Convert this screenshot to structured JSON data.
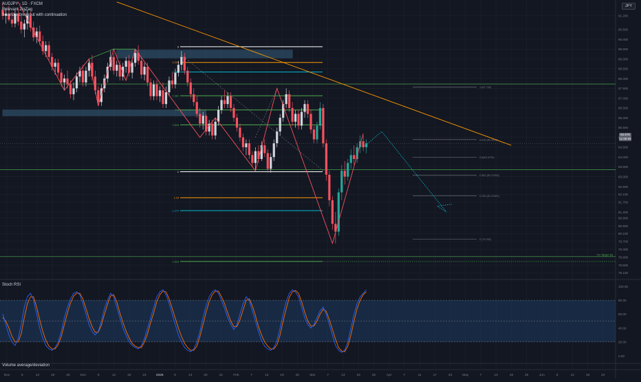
{
  "header": {
    "line1": "AUDJPY · 1D · FXCM",
    "line2": "Relevant ZigZag",
    "line3": "3 candle breakout with continuation"
  },
  "currency": "JPY",
  "last_price": {
    "price": "84.676",
    "countdown": "11:05:06"
  },
  "lower_panes": {
    "rsi_title": "Stoch RSI",
    "volume_title": "Volume average/deviation"
  },
  "colors": {
    "bg": "#131722",
    "grid": "#1e222d",
    "up": "#d1d4dc",
    "up_green": "#26a69a",
    "down": "#f7525f",
    "zigzag": "#f7525f",
    "trend": "#ff9800",
    "fib_white": "#ffffff",
    "fib_orange": "#ff9800",
    "fib_cyan": "#00bcd4",
    "fib_green": "#4caf50",
    "k_line": "#2962ff",
    "d_line": "#ff6d00",
    "band_fill": "#1e3a5f",
    "projection": "#00bcd4"
  },
  "chart_data": {
    "type": "candlestick",
    "symbol": "AUDJPY",
    "timeframe": "1D",
    "y_axis_ticks": [
      "91.200",
      "90.500",
      "90.000",
      "89.500",
      "89.000",
      "88.500",
      "88.000",
      "87.500",
      "87.000",
      "86.500",
      "86.000",
      "85.500",
      "85.000",
      "84.500",
      "84.000",
      "83.500",
      "83.000",
      "82.500",
      "82.100",
      "81.700",
      "81.200",
      "80.900",
      "80.500",
      "80.100",
      "79.700",
      "79.300",
      "78.900",
      "78.500",
      "78.100"
    ],
    "ylim": [
      77.8,
      92.0
    ],
    "x_axis_labels": [
      "Nov",
      "6",
      "13",
      "19",
      "25",
      "Dec",
      "6",
      "12",
      "18",
      "24",
      "2025",
      "8",
      "14",
      "20",
      "24",
      "Feb",
      "7",
      "13",
      "19",
      "25",
      "Mar",
      "7",
      "13",
      "19",
      "25",
      "Apr",
      "7",
      "11",
      "17",
      "23",
      "May",
      "7",
      "13",
      "19",
      "25",
      "Jun",
      "6",
      "12",
      "18",
      "24"
    ],
    "candles": [
      {
        "o": 91.5,
        "h": 91.9,
        "l": 91.0,
        "c": 91.2
      },
      {
        "o": 91.2,
        "h": 91.6,
        "l": 90.8,
        "c": 91.3
      },
      {
        "o": 91.3,
        "h": 91.7,
        "l": 90.9,
        "c": 91.0
      },
      {
        "o": 91.0,
        "h": 91.4,
        "l": 90.6,
        "c": 90.8
      },
      {
        "o": 90.8,
        "h": 91.5,
        "l": 90.6,
        "c": 91.3
      },
      {
        "o": 91.3,
        "h": 91.6,
        "l": 90.7,
        "c": 90.9
      },
      {
        "o": 90.9,
        "h": 91.2,
        "l": 90.3,
        "c": 90.5
      },
      {
        "o": 90.5,
        "h": 91.0,
        "l": 90.1,
        "c": 90.8
      },
      {
        "o": 90.8,
        "h": 91.5,
        "l": 90.5,
        "c": 91.2
      },
      {
        "o": 91.2,
        "h": 91.4,
        "l": 90.4,
        "c": 90.6
      },
      {
        "o": 90.6,
        "h": 90.9,
        "l": 89.9,
        "c": 90.1
      },
      {
        "o": 90.1,
        "h": 90.6,
        "l": 89.8,
        "c": 90.4
      },
      {
        "o": 90.4,
        "h": 90.7,
        "l": 89.7,
        "c": 89.9
      },
      {
        "o": 89.9,
        "h": 90.2,
        "l": 89.2,
        "c": 89.4
      },
      {
        "o": 89.4,
        "h": 89.9,
        "l": 89.1,
        "c": 89.7
      },
      {
        "o": 89.7,
        "h": 89.9,
        "l": 88.9,
        "c": 89.1
      },
      {
        "o": 89.1,
        "h": 89.3,
        "l": 88.4,
        "c": 88.6
      },
      {
        "o": 88.6,
        "h": 89.0,
        "l": 88.2,
        "c": 88.8
      },
      {
        "o": 88.8,
        "h": 89.0,
        "l": 88.1,
        "c": 88.3
      },
      {
        "o": 88.3,
        "h": 88.5,
        "l": 87.6,
        "c": 87.8
      },
      {
        "o": 87.8,
        "h": 88.2,
        "l": 87.4,
        "c": 88.0
      },
      {
        "o": 88.0,
        "h": 88.4,
        "l": 87.5,
        "c": 87.7
      },
      {
        "o": 87.7,
        "h": 87.9,
        "l": 87.0,
        "c": 87.2
      },
      {
        "o": 87.2,
        "h": 87.8,
        "l": 86.9,
        "c": 87.5
      },
      {
        "o": 87.5,
        "h": 88.3,
        "l": 87.3,
        "c": 88.1
      },
      {
        "o": 88.1,
        "h": 88.6,
        "l": 87.8,
        "c": 88.4
      },
      {
        "o": 88.4,
        "h": 88.7,
        "l": 87.6,
        "c": 87.8
      },
      {
        "o": 87.8,
        "h": 88.6,
        "l": 87.6,
        "c": 88.4
      },
      {
        "o": 88.4,
        "h": 89.0,
        "l": 88.1,
        "c": 88.8
      },
      {
        "o": 88.8,
        "h": 89.2,
        "l": 87.9,
        "c": 88.1
      },
      {
        "o": 88.1,
        "h": 88.4,
        "l": 87.2,
        "c": 87.4
      },
      {
        "o": 87.4,
        "h": 87.6,
        "l": 86.6,
        "c": 86.8
      },
      {
        "o": 86.8,
        "h": 87.7,
        "l": 86.6,
        "c": 87.5
      },
      {
        "o": 87.5,
        "h": 88.2,
        "l": 87.3,
        "c": 88.0
      },
      {
        "o": 88.0,
        "h": 88.8,
        "l": 87.8,
        "c": 88.6
      },
      {
        "o": 88.6,
        "h": 89.4,
        "l": 88.4,
        "c": 89.1
      },
      {
        "o": 89.1,
        "h": 89.3,
        "l": 88.2,
        "c": 88.4
      },
      {
        "o": 88.4,
        "h": 88.9,
        "l": 88.1,
        "c": 88.7
      },
      {
        "o": 88.7,
        "h": 88.9,
        "l": 87.9,
        "c": 88.1
      },
      {
        "o": 88.1,
        "h": 88.8,
        "l": 87.9,
        "c": 88.6
      },
      {
        "o": 88.6,
        "h": 89.1,
        "l": 88.3,
        "c": 88.9
      },
      {
        "o": 88.9,
        "h": 89.2,
        "l": 88.1,
        "c": 88.3
      },
      {
        "o": 88.3,
        "h": 89.0,
        "l": 88.0,
        "c": 88.8
      },
      {
        "o": 88.8,
        "h": 89.5,
        "l": 88.6,
        "c": 89.3
      },
      {
        "o": 89.3,
        "h": 89.7,
        "l": 88.7,
        "c": 88.9
      },
      {
        "o": 88.9,
        "h": 89.1,
        "l": 88.0,
        "c": 88.2
      },
      {
        "o": 88.2,
        "h": 88.8,
        "l": 87.9,
        "c": 88.6
      },
      {
        "o": 88.6,
        "h": 88.8,
        "l": 87.6,
        "c": 87.8
      },
      {
        "o": 87.8,
        "h": 88.0,
        "l": 86.9,
        "c": 87.1
      },
      {
        "o": 87.1,
        "h": 87.9,
        "l": 86.9,
        "c": 87.7
      },
      {
        "o": 87.7,
        "h": 87.9,
        "l": 86.9,
        "c": 87.1
      },
      {
        "o": 87.1,
        "h": 87.6,
        "l": 86.8,
        "c": 87.4
      },
      {
        "o": 87.4,
        "h": 87.8,
        "l": 86.5,
        "c": 86.7
      },
      {
        "o": 86.7,
        "h": 87.6,
        "l": 86.5,
        "c": 87.3
      },
      {
        "o": 87.3,
        "h": 88.1,
        "l": 87.1,
        "c": 87.9
      },
      {
        "o": 87.9,
        "h": 88.3,
        "l": 87.5,
        "c": 87.7
      },
      {
        "o": 87.7,
        "h": 88.5,
        "l": 87.5,
        "c": 88.3
      },
      {
        "o": 88.3,
        "h": 88.9,
        "l": 88.1,
        "c": 88.7
      },
      {
        "o": 88.7,
        "h": 89.4,
        "l": 88.4,
        "c": 89.1
      },
      {
        "o": 89.1,
        "h": 89.3,
        "l": 88.2,
        "c": 88.4
      },
      {
        "o": 88.4,
        "h": 88.6,
        "l": 87.6,
        "c": 87.8
      },
      {
        "o": 87.8,
        "h": 88.0,
        "l": 87.0,
        "c": 87.2
      },
      {
        "o": 87.2,
        "h": 87.5,
        "l": 86.6,
        "c": 86.8
      },
      {
        "o": 86.8,
        "h": 87.1,
        "l": 86.0,
        "c": 86.2
      },
      {
        "o": 86.2,
        "h": 86.5,
        "l": 85.5,
        "c": 85.7
      },
      {
        "o": 85.7,
        "h": 86.3,
        "l": 85.4,
        "c": 86.1
      },
      {
        "o": 86.1,
        "h": 86.2,
        "l": 85.1,
        "c": 85.3
      },
      {
        "o": 85.3,
        "h": 85.9,
        "l": 85.1,
        "c": 85.7
      },
      {
        "o": 85.7,
        "h": 85.9,
        "l": 84.9,
        "c": 85.1
      },
      {
        "o": 85.1,
        "h": 86.0,
        "l": 84.9,
        "c": 85.8
      },
      {
        "o": 85.8,
        "h": 86.6,
        "l": 85.6,
        "c": 86.4
      },
      {
        "o": 86.4,
        "h": 87.1,
        "l": 86.2,
        "c": 86.9
      },
      {
        "o": 86.9,
        "h": 87.4,
        "l": 86.5,
        "c": 86.7
      },
      {
        "o": 86.7,
        "h": 87.3,
        "l": 86.5,
        "c": 87.1
      },
      {
        "o": 87.1,
        "h": 87.3,
        "l": 86.3,
        "c": 86.5
      },
      {
        "o": 86.5,
        "h": 86.7,
        "l": 85.8,
        "c": 86.0
      },
      {
        "o": 86.0,
        "h": 86.2,
        "l": 85.3,
        "c": 85.5
      },
      {
        "o": 85.5,
        "h": 85.7,
        "l": 84.8,
        "c": 85.0
      },
      {
        "o": 85.0,
        "h": 85.2,
        "l": 84.3,
        "c": 84.5
      },
      {
        "o": 84.5,
        "h": 84.9,
        "l": 84.1,
        "c": 84.7
      },
      {
        "o": 84.7,
        "h": 84.9,
        "l": 83.9,
        "c": 84.1
      },
      {
        "o": 84.1,
        "h": 84.3,
        "l": 83.5,
        "c": 83.7
      },
      {
        "o": 83.7,
        "h": 84.5,
        "l": 83.3,
        "c": 84.3
      },
      {
        "o": 84.3,
        "h": 84.6,
        "l": 83.7,
        "c": 83.9
      },
      {
        "o": 83.9,
        "h": 84.8,
        "l": 83.8,
        "c": 84.6
      },
      {
        "o": 84.6,
        "h": 84.9,
        "l": 84.0,
        "c": 84.2
      },
      {
        "o": 84.2,
        "h": 84.4,
        "l": 83.2,
        "c": 83.4
      },
      {
        "o": 83.4,
        "h": 84.2,
        "l": 83.2,
        "c": 84.0
      },
      {
        "o": 84.0,
        "h": 84.9,
        "l": 83.8,
        "c": 84.7
      },
      {
        "o": 84.7,
        "h": 85.5,
        "l": 84.5,
        "c": 85.3
      },
      {
        "o": 85.3,
        "h": 86.2,
        "l": 85.1,
        "c": 86.0
      },
      {
        "o": 86.0,
        "h": 86.9,
        "l": 85.8,
        "c": 86.7
      },
      {
        "o": 86.7,
        "h": 87.5,
        "l": 86.5,
        "c": 87.2
      },
      {
        "o": 87.2,
        "h": 87.4,
        "l": 86.3,
        "c": 86.5
      },
      {
        "o": 86.5,
        "h": 86.8,
        "l": 85.6,
        "c": 85.8
      },
      {
        "o": 85.8,
        "h": 86.4,
        "l": 85.5,
        "c": 86.2
      },
      {
        "o": 86.2,
        "h": 86.4,
        "l": 85.4,
        "c": 85.6
      },
      {
        "o": 85.6,
        "h": 86.5,
        "l": 85.4,
        "c": 86.3
      },
      {
        "o": 86.3,
        "h": 86.9,
        "l": 86.0,
        "c": 86.7
      },
      {
        "o": 86.7,
        "h": 86.9,
        "l": 86.0,
        "c": 86.2
      },
      {
        "o": 86.2,
        "h": 86.4,
        "l": 85.2,
        "c": 85.4
      },
      {
        "o": 85.4,
        "h": 85.6,
        "l": 84.7,
        "c": 84.9
      },
      {
        "o": 84.9,
        "h": 85.8,
        "l": 84.7,
        "c": 85.6
      },
      {
        "o": 85.6,
        "h": 86.8,
        "l": 85.4,
        "c": 86.5
      },
      {
        "o": 86.5,
        "h": 86.7,
        "l": 84.5,
        "c": 84.7
      },
      {
        "o": 84.7,
        "h": 84.9,
        "l": 82.8,
        "c": 83.1
      },
      {
        "o": 83.1,
        "h": 83.3,
        "l": 81.5,
        "c": 81.8
      },
      {
        "o": 81.8,
        "h": 82.0,
        "l": 80.3,
        "c": 80.6
      },
      {
        "o": 80.6,
        "h": 81.2,
        "l": 79.6,
        "c": 80.2
      },
      {
        "o": 80.2,
        "h": 82.4,
        "l": 80.0,
        "c": 82.2
      },
      {
        "o": 82.2,
        "h": 83.6,
        "l": 81.8,
        "c": 83.3
      },
      {
        "o": 83.3,
        "h": 83.8,
        "l": 82.6,
        "c": 83.0
      },
      {
        "o": 83.0,
        "h": 83.9,
        "l": 82.8,
        "c": 83.7
      },
      {
        "o": 83.7,
        "h": 84.4,
        "l": 83.4,
        "c": 84.1
      },
      {
        "o": 84.1,
        "h": 84.6,
        "l": 83.6,
        "c": 83.9
      },
      {
        "o": 83.9,
        "h": 84.7,
        "l": 83.7,
        "c": 84.5
      },
      {
        "o": 84.5,
        "h": 85.1,
        "l": 84.2,
        "c": 84.8
      },
      {
        "o": 84.8,
        "h": 85.1,
        "l": 84.3,
        "c": 84.5
      },
      {
        "o": 84.5,
        "h": 84.9,
        "l": 84.2,
        "c": 84.7
      }
    ],
    "fib_left": [
      {
        "label": "0",
        "price": 89.62,
        "color": "#ffffff"
      },
      {
        "label": "0.236",
        "price": 88.82,
        "color": "#ff9800"
      },
      {
        "label": "0.382",
        "price": 88.33,
        "color": "#00bcd4"
      },
      {
        "label": "0.382",
        "price": 87.12,
        "color": "#4caf50"
      },
      {
        "label": "0.5",
        "price": 86.4,
        "color": "#4caf50"
      },
      {
        "label": "0.618",
        "price": 85.64,
        "color": "#4caf50"
      },
      {
        "label": "1",
        "price": 83.25,
        "color": "#ffffff"
      },
      {
        "label": "1.18",
        "price": 81.93,
        "color": "#ff9800"
      },
      {
        "label": "1.272",
        "price": 81.27,
        "color": "#00bcd4"
      },
      {
        "label": "1.618",
        "price": 78.68,
        "color": "#4caf50"
      }
    ],
    "fib_right": [
      {
        "label": "1 (87.720)",
        "price": 87.57
      },
      {
        "label": "0.618 (84.4698)",
        "price": 84.89
      },
      {
        "label": "0.5(83.4729)",
        "price": 83.98
      },
      {
        "label": "0.382 (82.47594)",
        "price": 83.07
      },
      {
        "label": "0.236 (81.22481)",
        "price": 82.03
      },
      {
        "label": "0 (79.202)",
        "price": 79.82
      }
    ],
    "horizontal_levels": [
      {
        "price": 87.72,
        "color": "#4caf50"
      },
      {
        "price": 83.36,
        "color": "#4caf50"
      },
      {
        "price": 78.93,
        "color": "#4caf50"
      }
    ],
    "target_label": "TG Target 1B",
    "zones": [
      {
        "from_idx": 37,
        "to_idx": 94,
        "top": 89.45,
        "bottom": 89.05
      },
      {
        "from_idx": 0,
        "to_idx": 66,
        "top": 86.4,
        "bottom": 86.1
      }
    ],
    "zigzag": [
      {
        "i": 5,
        "price": 91.9
      },
      {
        "i": 20,
        "price": 87.4
      },
      {
        "i": 28,
        "price": 89.0
      },
      {
        "i": 31,
        "price": 86.6
      },
      {
        "i": 36,
        "price": 89.5
      },
      {
        "i": 40,
        "price": 87.9
      },
      {
        "i": 43,
        "price": 89.5
      },
      {
        "i": 64,
        "price": 85.0
      },
      {
        "i": 69,
        "price": 86.0
      },
      {
        "i": 82,
        "price": 83.3
      },
      {
        "i": 89,
        "price": 87.5
      },
      {
        "i": 107,
        "price": 79.6
      },
      {
        "i": 117,
        "price": 85.2
      }
    ],
    "trendline": [
      {
        "i": 37,
        "price": 91.9
      },
      {
        "i": 165,
        "price": 84.6
      }
    ],
    "projection": [
      {
        "i": 117,
        "price": 84.5
      },
      {
        "i": 123,
        "price": 85.3
      },
      {
        "i": 144,
        "price": 81.2
      },
      {
        "i": 141,
        "price": 81.5
      },
      {
        "i": 146,
        "price": 81.6
      }
    ],
    "rsi": {
      "ticks": [
        "100.00",
        "80.00",
        "60.00",
        "40.00",
        "20.00",
        "0.00"
      ],
      "k": [
        60,
        45,
        30,
        20,
        15,
        25,
        45,
        70,
        85,
        90,
        80,
        60,
        40,
        25,
        15,
        10,
        8,
        12,
        20,
        35,
        55,
        70,
        82,
        90,
        92,
        88,
        75,
        60,
        45,
        35,
        30,
        35,
        50,
        68,
        80,
        90,
        85,
        70,
        55,
        40,
        30,
        20,
        15,
        12,
        10,
        15,
        25,
        40,
        55,
        70,
        85,
        92,
        95,
        88,
        75,
        60,
        45,
        30,
        20,
        12,
        8,
        6,
        10,
        20,
        35,
        55,
        72,
        85,
        92,
        95,
        90,
        80,
        68,
        55,
        45,
        38,
        45,
        60,
        75,
        85,
        80,
        65,
        50,
        35,
        22,
        14,
        10,
        8,
        12,
        22,
        40,
        60,
        78,
        90,
        95,
        92,
        85,
        70,
        55,
        45,
        40,
        45,
        55,
        65,
        70,
        60,
        45,
        30,
        15,
        8,
        5,
        8,
        20,
        40,
        60,
        75,
        85,
        90,
        95
      ],
      "d": [
        55,
        50,
        40,
        28,
        20,
        20,
        32,
        55,
        75,
        85,
        85,
        70,
        52,
        35,
        22,
        14,
        10,
        10,
        16,
        28,
        45,
        62,
        76,
        86,
        90,
        90,
        82,
        68,
        54,
        42,
        34,
        34,
        44,
        60,
        74,
        86,
        88,
        78,
        62,
        48,
        36,
        26,
        18,
        14,
        12,
        12,
        20,
        32,
        48,
        62,
        78,
        88,
        93,
        92,
        82,
        68,
        54,
        40,
        28,
        18,
        12,
        8,
        8,
        14,
        28,
        45,
        63,
        78,
        88,
        93,
        93,
        85,
        75,
        62,
        50,
        42,
        42,
        52,
        66,
        80,
        82,
        72,
        58,
        42,
        30,
        20,
        14,
        10,
        10,
        16,
        30,
        50,
        68,
        84,
        92,
        94,
        90,
        78,
        63,
        50,
        43,
        43,
        50,
        60,
        67,
        64,
        52,
        38,
        24,
        12,
        7,
        6,
        14,
        30,
        50,
        68,
        80,
        88,
        92
      ]
    },
    "volume_ticks": []
  }
}
